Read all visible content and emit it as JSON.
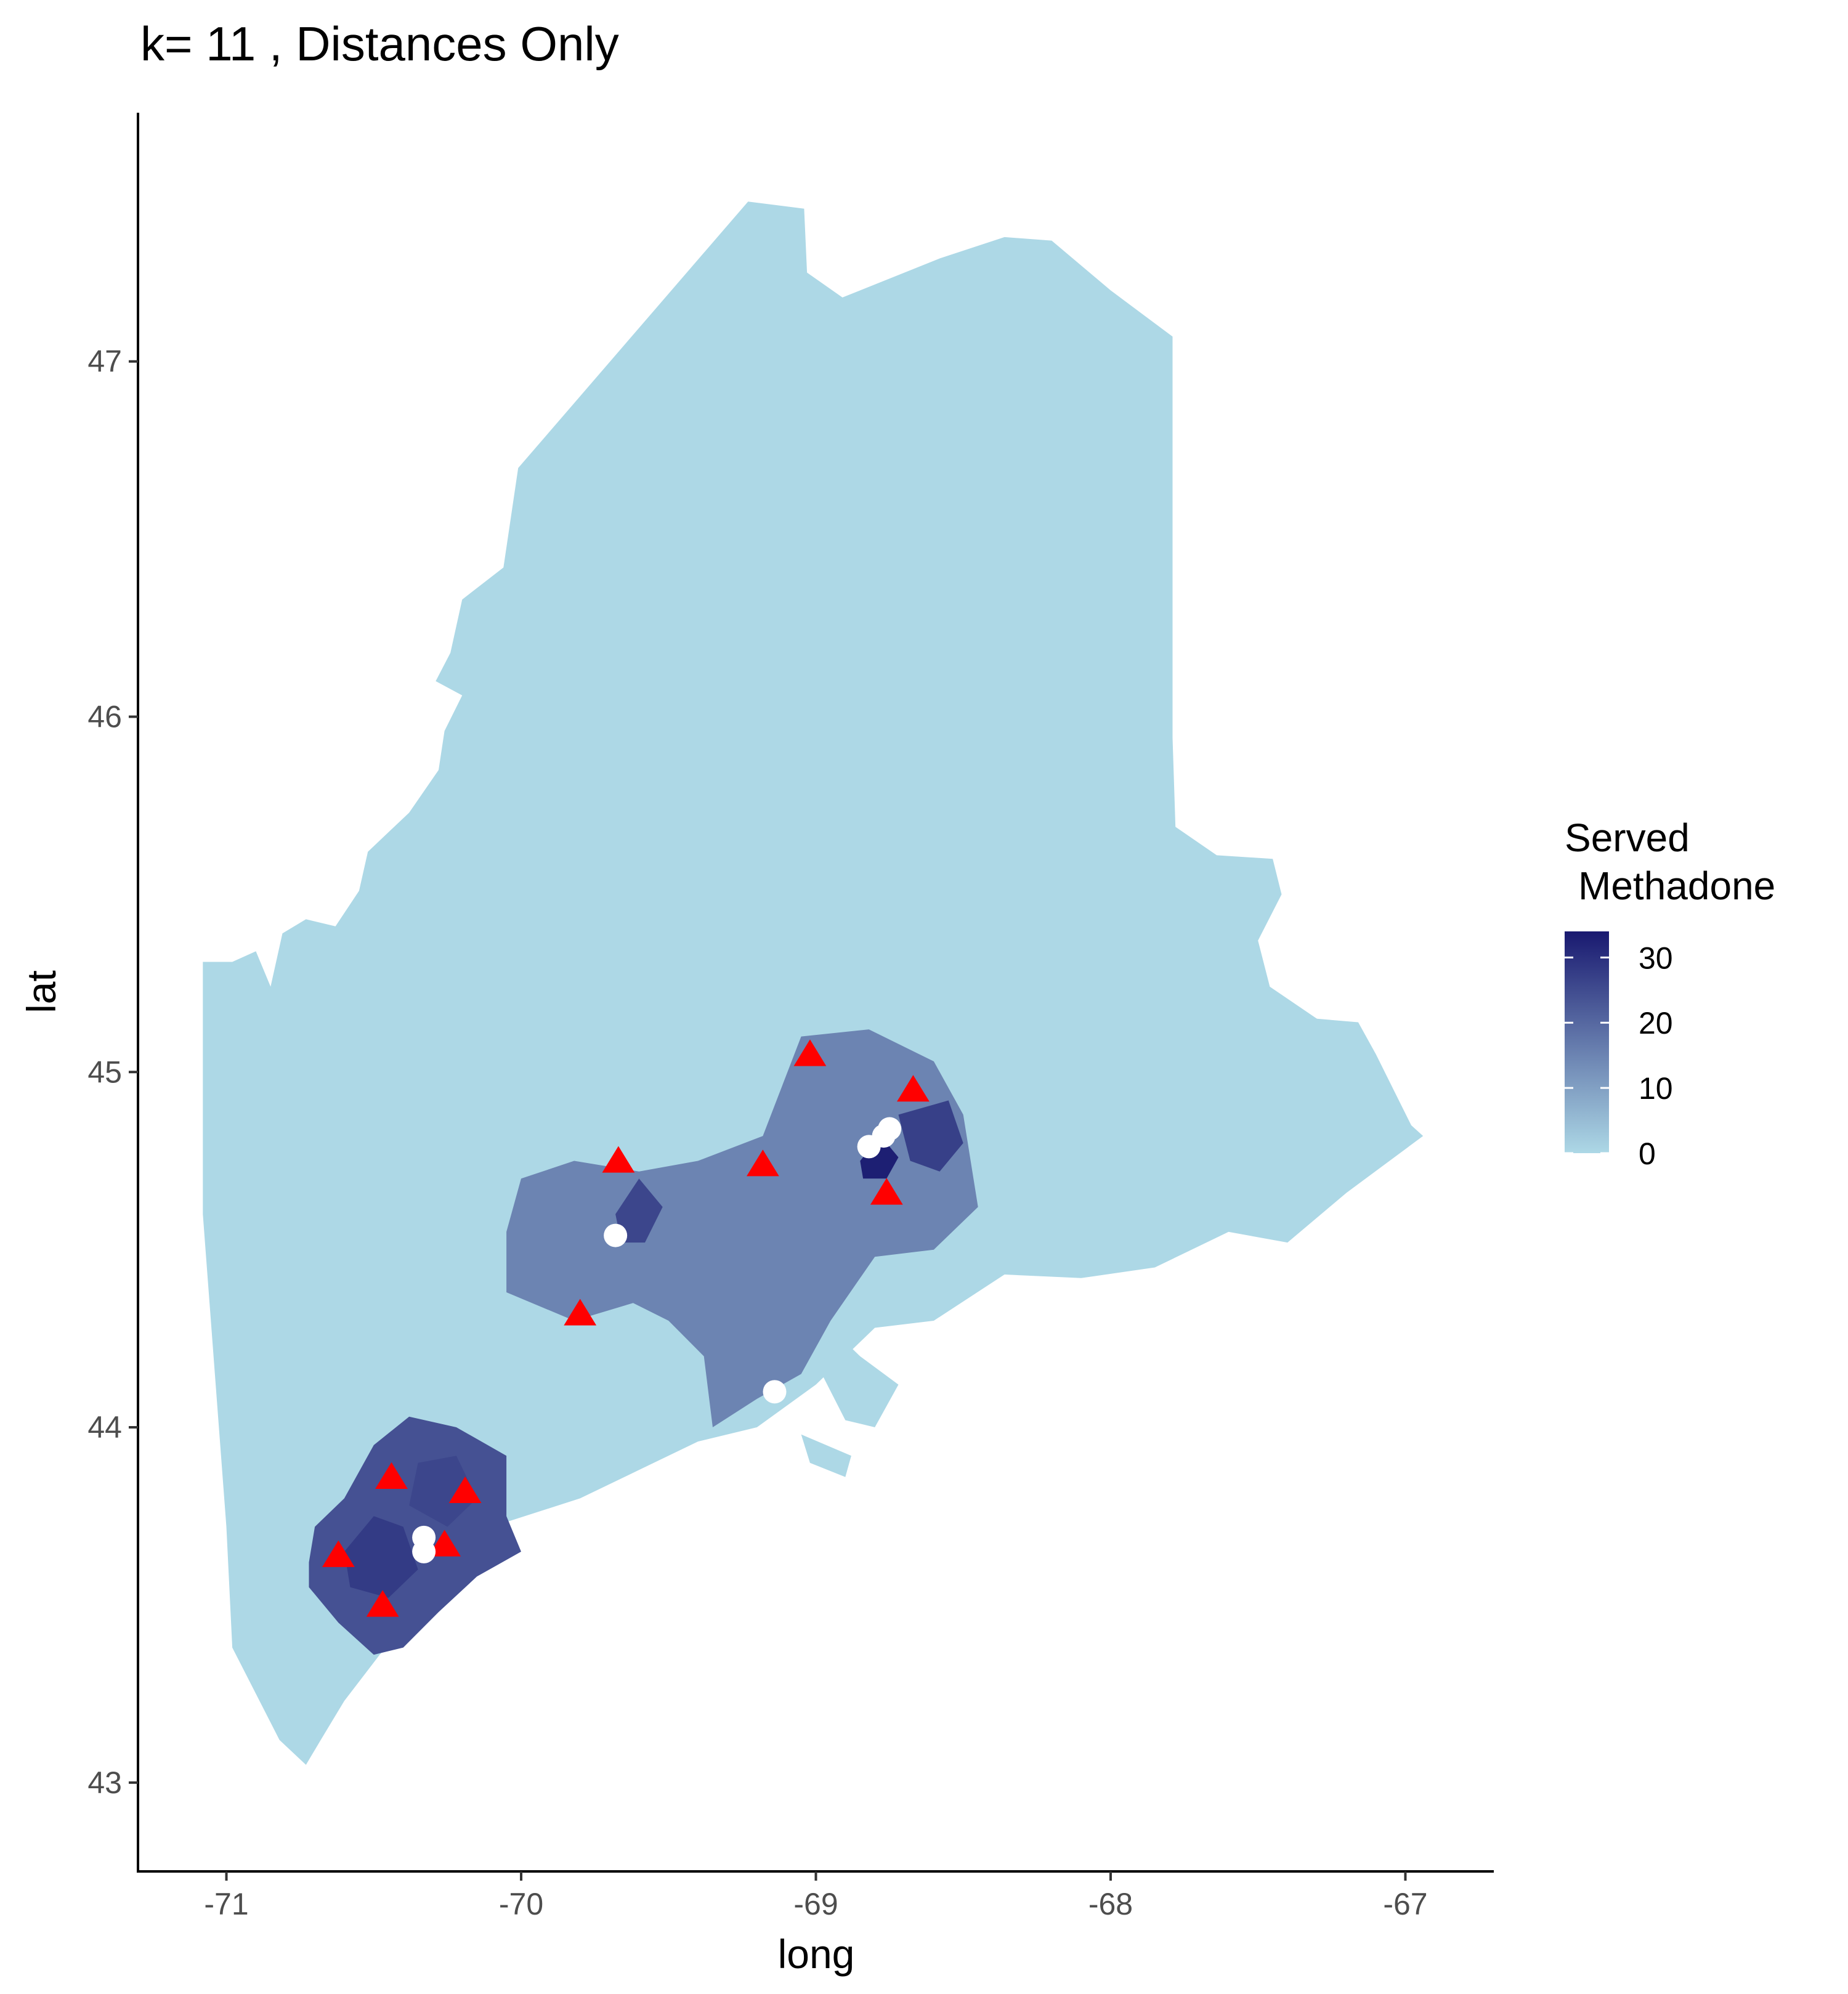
{
  "chart_data": {
    "type": "map",
    "title": "k= 11 , Distances Only",
    "xlabel": "long",
    "ylabel": "lat",
    "xlim": [
      -71.3,
      -66.7
    ],
    "ylim": [
      42.75,
      47.7
    ],
    "x_ticks": [
      -71,
      -70,
      -69,
      -68,
      -67
    ],
    "y_ticks": [
      43,
      44,
      45,
      46,
      47
    ],
    "x_tick_labels": [
      "-71",
      "-70",
      "-69",
      "-68",
      "-67"
    ],
    "y_tick_labels": [
      "43",
      "44",
      "45",
      "46",
      "47"
    ],
    "legend": {
      "title_line1": "Served",
      "title_line2": "Methadone",
      "placement": "right",
      "breaks": [
        0,
        10,
        20,
        30
      ],
      "break_labels": [
        "0",
        "10",
        "20",
        "30"
      ],
      "range": [
        0,
        34
      ],
      "low_color": "#add8e6",
      "high_color": "#191970"
    },
    "outline": [
      [
        -70.98,
        45.31
      ],
      [
        -70.9,
        45.34
      ],
      [
        -70.85,
        45.24
      ],
      [
        -70.81,
        45.39
      ],
      [
        -70.73,
        45.43
      ],
      [
        -70.63,
        45.41
      ],
      [
        -70.55,
        45.51
      ],
      [
        -70.52,
        45.62
      ],
      [
        -70.38,
        45.73
      ],
      [
        -70.28,
        45.85
      ],
      [
        -70.26,
        45.96
      ],
      [
        -70.2,
        46.06
      ],
      [
        -70.29,
        46.1
      ],
      [
        -70.24,
        46.18
      ],
      [
        -70.2,
        46.33
      ],
      [
        -70.06,
        46.42
      ],
      [
        -70.01,
        46.7
      ],
      [
        -69.23,
        47.45
      ],
      [
        -69.04,
        47.43
      ],
      [
        -69.03,
        47.25
      ],
      [
        -68.91,
        47.18
      ],
      [
        -68.58,
        47.29
      ],
      [
        -68.36,
        47.35
      ],
      [
        -68.2,
        47.34
      ],
      [
        -68.0,
        47.2
      ],
      [
        -67.79,
        47.07
      ],
      [
        -67.79,
        45.94
      ],
      [
        -67.78,
        45.69
      ],
      [
        -67.64,
        45.61
      ],
      [
        -67.45,
        45.6
      ],
      [
        -67.42,
        45.5
      ],
      [
        -67.5,
        45.37
      ],
      [
        -67.46,
        45.24
      ],
      [
        -67.3,
        45.15
      ],
      [
        -67.16,
        45.14
      ],
      [
        -67.1,
        45.05
      ],
      [
        -66.98,
        44.85
      ],
      [
        -66.94,
        44.82
      ],
      [
        -67.2,
        44.66
      ],
      [
        -67.4,
        44.52
      ],
      [
        -67.6,
        44.55
      ],
      [
        -67.85,
        44.45
      ],
      [
        -68.1,
        44.42
      ],
      [
        -68.36,
        44.43
      ],
      [
        -68.6,
        44.3
      ],
      [
        -68.8,
        44.28
      ],
      [
        -69.0,
        44.12
      ],
      [
        -69.2,
        44.0
      ],
      [
        -69.4,
        43.96
      ],
      [
        -69.6,
        43.88
      ],
      [
        -69.8,
        43.8
      ],
      [
        -70.1,
        43.72
      ],
      [
        -70.2,
        43.62
      ],
      [
        -70.3,
        43.55
      ],
      [
        -70.38,
        43.45
      ],
      [
        -70.48,
        43.36
      ],
      [
        -70.6,
        43.23
      ],
      [
        -70.68,
        43.12
      ],
      [
        -70.73,
        43.05
      ],
      [
        -70.82,
        43.12
      ],
      [
        -70.98,
        43.38
      ],
      [
        -71.0,
        43.72
      ],
      [
        -71.08,
        44.6
      ],
      [
        -71.08,
        45.31
      ]
    ],
    "high_clusters": [
      {
        "points": [
          [
            -70.72,
            43.62
          ],
          [
            -70.7,
            43.72
          ],
          [
            -70.6,
            43.8
          ],
          [
            -70.5,
            43.95
          ],
          [
            -70.38,
            44.03
          ],
          [
            -70.22,
            44.0
          ],
          [
            -70.05,
            43.92
          ],
          [
            -70.05,
            43.75
          ],
          [
            -70.0,
            43.65
          ],
          [
            -70.15,
            43.58
          ],
          [
            -70.28,
            43.48
          ],
          [
            -70.4,
            43.38
          ],
          [
            -70.5,
            43.36
          ],
          [
            -70.62,
            43.45
          ],
          [
            -70.72,
            43.55
          ]
        ],
        "value": 24
      },
      {
        "points": [
          [
            -70.05,
            44.55
          ],
          [
            -70.0,
            44.7
          ],
          [
            -69.82,
            44.75
          ],
          [
            -69.6,
            44.72
          ],
          [
            -69.4,
            44.75
          ],
          [
            -69.18,
            44.82
          ],
          [
            -69.05,
            45.1
          ],
          [
            -68.82,
            45.12
          ],
          [
            -68.6,
            45.03
          ],
          [
            -68.5,
            44.88
          ],
          [
            -68.45,
            44.62
          ],
          [
            -68.6,
            44.5
          ],
          [
            -68.8,
            44.48
          ],
          [
            -68.95,
            44.3
          ],
          [
            -69.05,
            44.15
          ],
          [
            -69.2,
            44.08
          ],
          [
            -69.35,
            44.0
          ],
          [
            -69.38,
            44.2
          ],
          [
            -69.5,
            44.3
          ],
          [
            -69.62,
            44.35
          ],
          [
            -69.82,
            44.3
          ],
          [
            -70.05,
            44.38
          ]
        ],
        "value": 15
      }
    ],
    "dark_patches": [
      {
        "points": [
          [
            -70.6,
            43.65
          ],
          [
            -70.5,
            43.75
          ],
          [
            -70.4,
            43.72
          ],
          [
            -70.35,
            43.6
          ],
          [
            -70.45,
            43.52
          ],
          [
            -70.58,
            43.55
          ]
        ],
        "value": 28
      },
      {
        "points": [
          [
            -70.35,
            43.9
          ],
          [
            -70.22,
            43.92
          ],
          [
            -70.15,
            43.8
          ],
          [
            -70.25,
            43.72
          ],
          [
            -70.38,
            43.78
          ]
        ],
        "value": 26
      },
      {
        "points": [
          [
            -69.68,
            44.6
          ],
          [
            -69.6,
            44.7
          ],
          [
            -69.52,
            44.62
          ],
          [
            -69.58,
            44.52
          ],
          [
            -69.66,
            44.52
          ]
        ],
        "value": 26
      },
      {
        "points": [
          [
            -68.85,
            44.75
          ],
          [
            -68.78,
            44.82
          ],
          [
            -68.72,
            44.76
          ],
          [
            -68.76,
            44.7
          ],
          [
            -68.84,
            44.7
          ]
        ],
        "value": 33
      },
      {
        "points": [
          [
            -68.72,
            44.88
          ],
          [
            -68.55,
            44.92
          ],
          [
            -68.5,
            44.8
          ],
          [
            -68.58,
            44.72
          ],
          [
            -68.68,
            44.75
          ]
        ],
        "value": 27
      }
    ],
    "islands": [
      {
        "points": [
          [
            -68.95,
            44.28
          ],
          [
            -68.85,
            44.2
          ],
          [
            -68.72,
            44.12
          ],
          [
            -68.8,
            44.0
          ],
          [
            -68.9,
            44.02
          ],
          [
            -68.98,
            44.15
          ]
        ],
        "value": 0
      },
      {
        "points": [
          [
            -69.05,
            43.98
          ],
          [
            -68.88,
            43.92
          ],
          [
            -68.9,
            43.86
          ],
          [
            -69.02,
            43.9
          ]
        ],
        "value": 0
      }
    ],
    "circle_points": [
      {
        "x": -69.68,
        "y": 44.54
      },
      {
        "x": -68.82,
        "y": 44.79
      },
      {
        "x": -68.77,
        "y": 44.82
      },
      {
        "x": -68.75,
        "y": 44.84
      },
      {
        "x": -69.14,
        "y": 44.1
      },
      {
        "x": -70.33,
        "y": 43.69
      },
      {
        "x": -70.33,
        "y": 43.65
      }
    ],
    "triangle_points": [
      {
        "x": -69.02,
        "y": 45.05
      },
      {
        "x": -68.67,
        "y": 44.95
      },
      {
        "x": -69.67,
        "y": 44.75
      },
      {
        "x": -69.18,
        "y": 44.74
      },
      {
        "x": -68.76,
        "y": 44.66
      },
      {
        "x": -69.8,
        "y": 44.32
      },
      {
        "x": -70.44,
        "y": 43.86
      },
      {
        "x": -70.19,
        "y": 43.82
      },
      {
        "x": -70.62,
        "y": 43.64
      },
      {
        "x": -70.26,
        "y": 43.67
      },
      {
        "x": -70.47,
        "y": 43.5
      }
    ],
    "colors": {
      "land": "#add8e6",
      "triangle": "#ff0000",
      "circle": "#ffffff",
      "axis": "#000000"
    }
  }
}
